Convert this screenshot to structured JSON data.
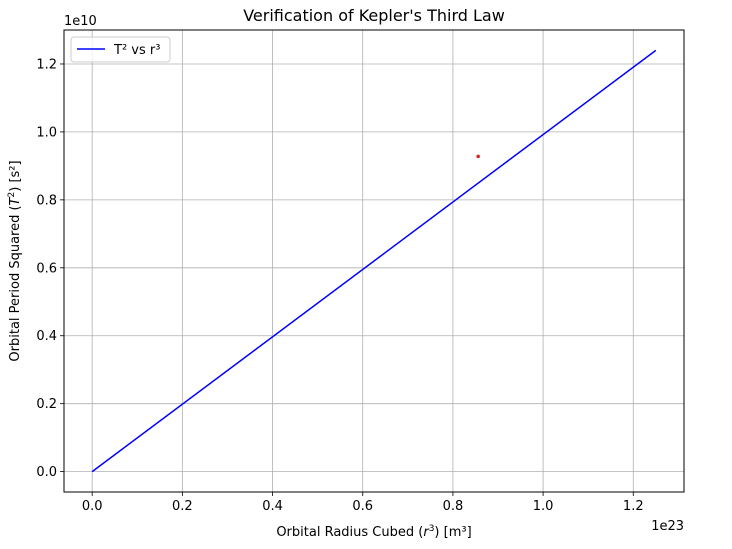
{
  "chart_data": {
    "type": "line",
    "title": "Verification of Kepler's Third Law",
    "xlabel": {
      "pre": "Orbital Radius Cubed (",
      "var": "r",
      "sup": "3",
      "post": ") [m³]"
    },
    "ylabel": {
      "pre": "Orbital Period Squared (",
      "var": "T",
      "sup": "2",
      "post": ") [s²]"
    },
    "x_offset_label": "1e23",
    "y_offset_label": "1e10",
    "x_scale": 1e+23,
    "y_scale": 10000000000.0,
    "xlim": [
      -0.0625,
      1.3125
    ],
    "ylim": [
      -0.06,
      1.3
    ],
    "xticks": [
      0.0,
      0.2,
      0.4,
      0.6,
      0.8,
      1.0,
      1.2
    ],
    "xtick_labels": [
      "0.0",
      "0.2",
      "0.4",
      "0.6",
      "0.8",
      "1.0",
      "1.2"
    ],
    "yticks": [
      0.0,
      0.2,
      0.4,
      0.6,
      0.8,
      1.0,
      1.2
    ],
    "ytick_labels": [
      "0.0",
      "0.2",
      "0.4",
      "0.6",
      "0.8",
      "1.0",
      "1.2"
    ],
    "grid": true,
    "legend_position": "top-left",
    "series": [
      {
        "name": "T² vs r³",
        "kind": "line",
        "color": "#0000ff",
        "x": [
          0.0,
          1.25
        ],
        "y": [
          0.0,
          1.24
        ]
      },
      {
        "kind": "scatter",
        "color": "#d62728",
        "x": [
          0.856
        ],
        "y": [
          0.928
        ]
      }
    ]
  }
}
